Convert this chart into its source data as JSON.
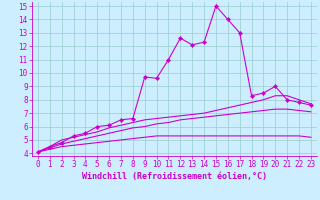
{
  "xlabel": "Windchill (Refroidissement éolien,°C)",
  "background_color": "#cceeff",
  "line_color": "#cc00cc",
  "grid_color": "#99cccc",
  "xlim": [
    -0.5,
    23.5
  ],
  "ylim": [
    3.8,
    15.3
  ],
  "xticks": [
    0,
    1,
    2,
    3,
    4,
    5,
    6,
    7,
    8,
    9,
    10,
    11,
    12,
    13,
    14,
    15,
    16,
    17,
    18,
    19,
    20,
    21,
    22,
    23
  ],
  "yticks": [
    4,
    5,
    6,
    7,
    8,
    9,
    10,
    11,
    12,
    13,
    14,
    15
  ],
  "series1": [
    4.1,
    4.5,
    4.8,
    5.3,
    5.5,
    6.0,
    6.1,
    6.5,
    6.6,
    9.7,
    9.6,
    11.0,
    12.6,
    12.1,
    12.3,
    15.0,
    14.0,
    13.0,
    8.3,
    8.5,
    9.0,
    8.0,
    7.8,
    7.6
  ],
  "series2": [
    4.1,
    4.5,
    5.0,
    5.2,
    5.4,
    5.6,
    5.9,
    6.1,
    6.3,
    6.5,
    6.6,
    6.7,
    6.8,
    6.9,
    7.0,
    7.2,
    7.4,
    7.6,
    7.8,
    8.0,
    8.3,
    8.3,
    8.0,
    7.7
  ],
  "series3": [
    4.1,
    4.4,
    4.7,
    4.9,
    5.1,
    5.3,
    5.5,
    5.7,
    5.9,
    6.0,
    6.2,
    6.3,
    6.5,
    6.6,
    6.7,
    6.8,
    6.9,
    7.0,
    7.1,
    7.2,
    7.3,
    7.3,
    7.2,
    7.1
  ],
  "series4": [
    4.1,
    4.3,
    4.5,
    4.6,
    4.7,
    4.8,
    4.9,
    5.0,
    5.1,
    5.2,
    5.3,
    5.3,
    5.3,
    5.3,
    5.3,
    5.3,
    5.3,
    5.3,
    5.3,
    5.3,
    5.3,
    5.3,
    5.3,
    5.2
  ],
  "tick_fontsize": 5.5,
  "xlabel_fontsize": 6.0
}
